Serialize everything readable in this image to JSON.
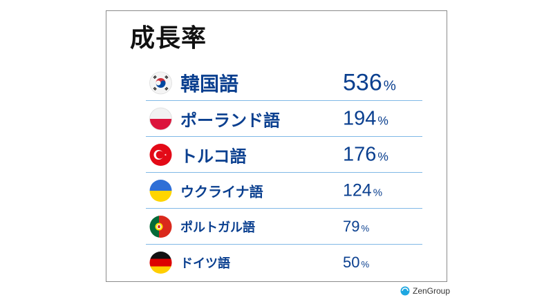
{
  "chart_data": {
    "type": "table",
    "title": "成長率",
    "unit": "%",
    "rows": [
      {
        "language": "韓国語",
        "value": 536,
        "flag": "south-korea-flag-icon"
      },
      {
        "language": "ポーランド語",
        "value": 194,
        "flag": "poland-flag-icon"
      },
      {
        "language": "トルコ語",
        "value": 176,
        "flag": "turkey-flag-icon"
      },
      {
        "language": "ウクライナ語",
        "value": 124,
        "flag": "ukraine-flag-icon"
      },
      {
        "language": "ポルトガル語",
        "value": 79,
        "flag": "portugal-flag-icon"
      },
      {
        "language": "ドイツ語",
        "value": 50,
        "flag": "germany-flag-icon"
      }
    ]
  },
  "footer": {
    "brand": "ZenGroup",
    "brand_icon": "zengroup-logo-icon"
  },
  "colors": {
    "text": "#0a3f8f",
    "divider": "#7fb8e6",
    "title": "#111111"
  }
}
